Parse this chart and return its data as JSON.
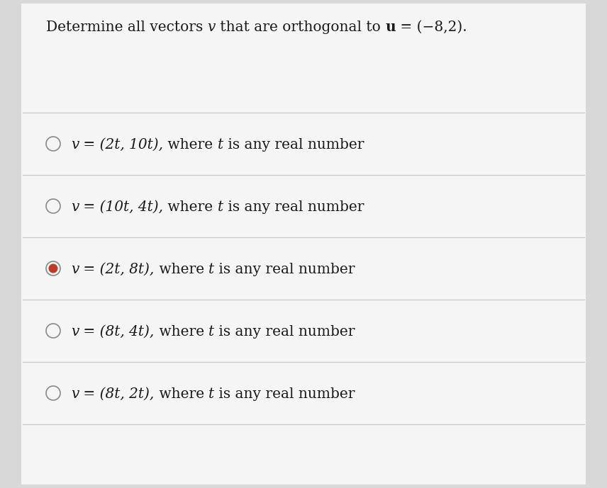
{
  "title_parts": [
    {
      "text": "Determine all vectors ",
      "bold": false,
      "italic": false
    },
    {
      "text": "v",
      "bold": false,
      "italic": true
    },
    {
      "text": " that are orthogonal to ",
      "bold": false,
      "italic": false
    },
    {
      "text": "u",
      "bold": true,
      "italic": false
    },
    {
      "text": " = (−8,2).",
      "bold": false,
      "italic": false
    }
  ],
  "background_color": "#d8d8d8",
  "panel_color": "#f5f5f5",
  "options": [
    {
      "italic_part": "v",
      "eq_part": " = (2t, 10t)",
      "comma": ",",
      "suffix": " where ",
      "t_italic": "t",
      "suffix2": " is any real number",
      "selected": false
    },
    {
      "italic_part": "v",
      "eq_part": " = (10t, 4t)",
      "comma": ",",
      "suffix": " where ",
      "t_italic": "t",
      "suffix2": " is any real number",
      "selected": false
    },
    {
      "italic_part": "v",
      "eq_part": " = (2t, 8t)",
      "comma": ",",
      "suffix": " where ",
      "t_italic": "t",
      "suffix2": " is any real number",
      "selected": true
    },
    {
      "italic_part": "v",
      "eq_part": " = (8t, 4t)",
      "comma": ",",
      "suffix": " where ",
      "t_italic": "t",
      "suffix2": " is any real number",
      "selected": false
    },
    {
      "italic_part": "v",
      "eq_part": " = (8t, 2t)",
      "comma": ",",
      "suffix": " where ",
      "t_italic": "t",
      "suffix2": " is any real number",
      "selected": false
    }
  ],
  "radio_unselected_facecolor": "#f5f5f5",
  "radio_unselected_edgecolor": "#888888",
  "radio_selected_facecolor": "#c0392b",
  "radio_selected_edgecolor": "#c0392b",
  "radio_outer_edgecolor": "#888888",
  "text_color": "#1a1a1a",
  "line_color": "#c8c8c8",
  "title_fontsize": 14.5,
  "option_fontsize": 14.5
}
